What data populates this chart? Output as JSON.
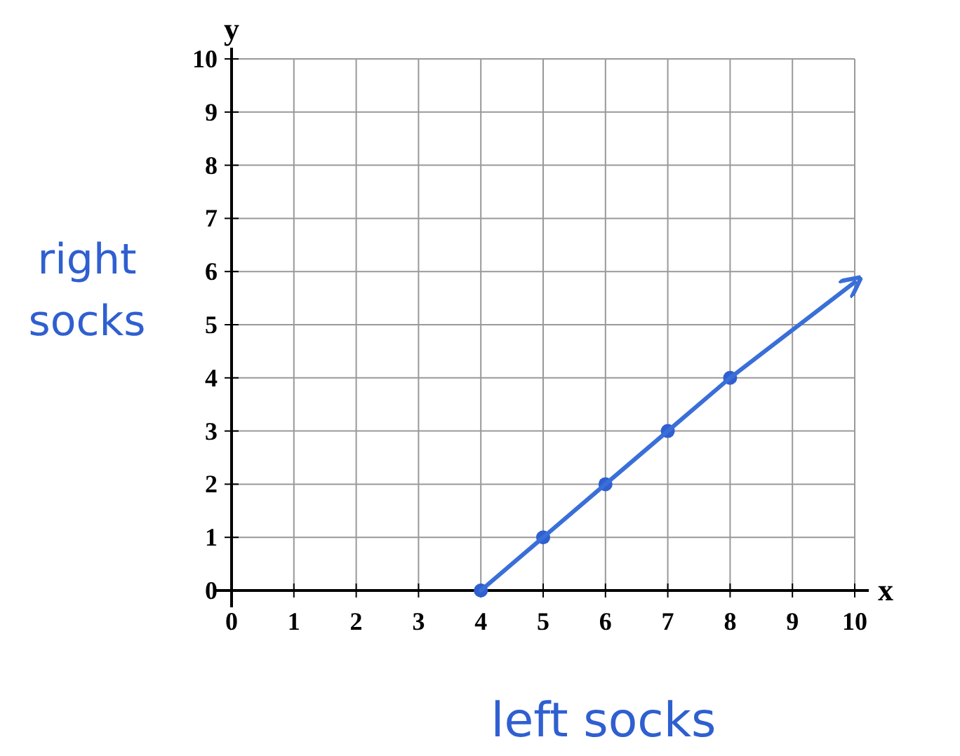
{
  "chart_data": {
    "type": "line",
    "xlabel": "left socks",
    "ylabel": "right socks",
    "annotations": [
      "x",
      "y"
    ],
    "xlim": [
      0,
      10
    ],
    "ylim": [
      0,
      10
    ],
    "xticks": [
      0,
      1,
      2,
      3,
      4,
      5,
      6,
      7,
      8,
      9,
      10
    ],
    "yticks": [
      0,
      1,
      2,
      3,
      4,
      5,
      6,
      7,
      8,
      9,
      10
    ],
    "grid": true,
    "series": [
      {
        "type": "scatter",
        "color": "#2f5fd0",
        "marker": "circle",
        "x": [
          4,
          5,
          6,
          7,
          8
        ],
        "values": [
          0,
          1,
          2,
          3,
          4
        ]
      },
      {
        "type": "line",
        "color": "#3a6fd8",
        "marker": "none",
        "line_style": "solid",
        "x": [
          4,
          5,
          6,
          7,
          8,
          10
        ],
        "values": [
          0,
          1,
          2,
          3,
          4,
          5.8
        ]
      }
    ]
  }
}
